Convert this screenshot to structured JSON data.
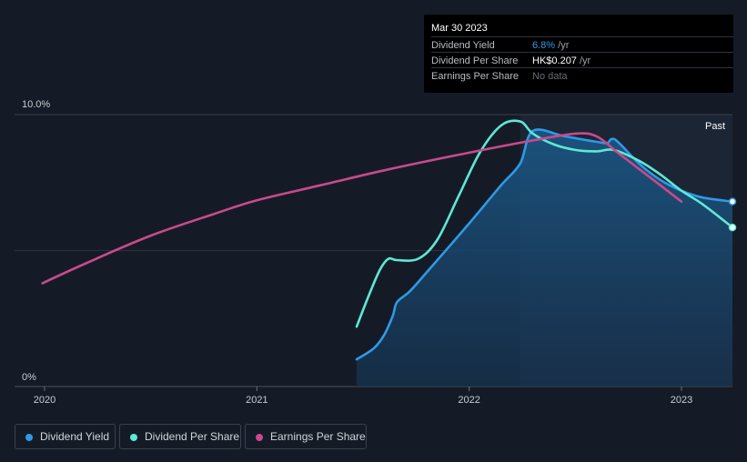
{
  "tooltip": {
    "date": "Mar 30 2023",
    "rows": [
      {
        "label": "Dividend Yield",
        "value": "6.8%",
        "unit": " /yr"
      },
      {
        "label": "Dividend Per Share",
        "value": "HK$0.207",
        "unit": " /yr"
      },
      {
        "label": "Earnings Per Share",
        "value": "No data",
        "unit": ""
      }
    ]
  },
  "legend": [
    {
      "label": "Dividend Yield",
      "color": "#2e9ae6"
    },
    {
      "label": "Dividend Per Share",
      "color": "#5ee8d4"
    },
    {
      "label": "Earnings Per Share",
      "color": "#c84a8c"
    }
  ],
  "chart_data": {
    "type": "line",
    "title": "",
    "xlabel": "",
    "ylabel": "",
    "ylim": [
      0,
      10
    ],
    "y_ticks": [
      "0%",
      "10.0%"
    ],
    "x_ticks": [
      {
        "label": "2020",
        "x": 2020.0
      },
      {
        "label": "2021",
        "x": 2021.0
      },
      {
        "label": "2022",
        "x": 2022.0
      },
      {
        "label": "2023",
        "x": 2023.0
      }
    ],
    "past_label": "Past",
    "past_start": 2022.24,
    "series": [
      {
        "name": "Dividend Yield",
        "color": "#2e9ae6",
        "filled": true,
        "x": [
          2021.47,
          2021.55,
          2021.6,
          2021.64,
          2021.66,
          2021.72,
          2021.8,
          2022.0,
          2022.15,
          2022.24,
          2022.3,
          2022.45,
          2022.6,
          2022.65,
          2022.67,
          2022.7,
          2022.8,
          2022.9,
          2023.0,
          2023.1,
          2023.24
        ],
        "y": [
          1.0,
          1.4,
          1.9,
          2.6,
          3.1,
          3.5,
          4.2,
          6.0,
          7.4,
          8.2,
          9.4,
          9.2,
          9.0,
          8.95,
          9.1,
          9.0,
          8.2,
          7.6,
          7.2,
          6.95,
          6.8
        ]
      },
      {
        "name": "Dividend Per Share",
        "color": "#5ee8d4",
        "filled": false,
        "x": [
          2021.47,
          2021.53,
          2021.58,
          2021.62,
          2021.66,
          2021.76,
          2021.85,
          2021.95,
          2022.05,
          2022.15,
          2022.24,
          2022.3,
          2022.4,
          2022.5,
          2022.6,
          2022.68,
          2022.8,
          2022.9,
          2023.0,
          2023.1,
          2023.24
        ],
        "y": [
          2.2,
          3.4,
          4.3,
          4.7,
          4.65,
          4.7,
          5.4,
          7.0,
          8.6,
          9.6,
          9.75,
          9.3,
          8.9,
          8.7,
          8.65,
          8.7,
          8.3,
          7.8,
          7.2,
          6.7,
          5.85
        ]
      },
      {
        "name": "Earnings Per Share",
        "color": "#c84a8c",
        "filled": false,
        "x": [
          2019.99,
          2020.2,
          2020.5,
          2020.8,
          2021.0,
          2021.3,
          2021.6,
          2022.0,
          2022.3,
          2022.5,
          2022.6,
          2022.7,
          2022.8,
          2022.9,
          2023.0
        ],
        "y": [
          3.8,
          4.55,
          5.55,
          6.35,
          6.85,
          7.4,
          7.95,
          8.6,
          9.05,
          9.3,
          9.2,
          8.6,
          8.0,
          7.4,
          6.8
        ]
      }
    ],
    "end_markers": [
      {
        "series": "Dividend Yield",
        "x": 2023.24,
        "y": 6.8
      },
      {
        "series": "Dividend Per Share",
        "x": 2023.24,
        "y": 5.85
      }
    ]
  }
}
